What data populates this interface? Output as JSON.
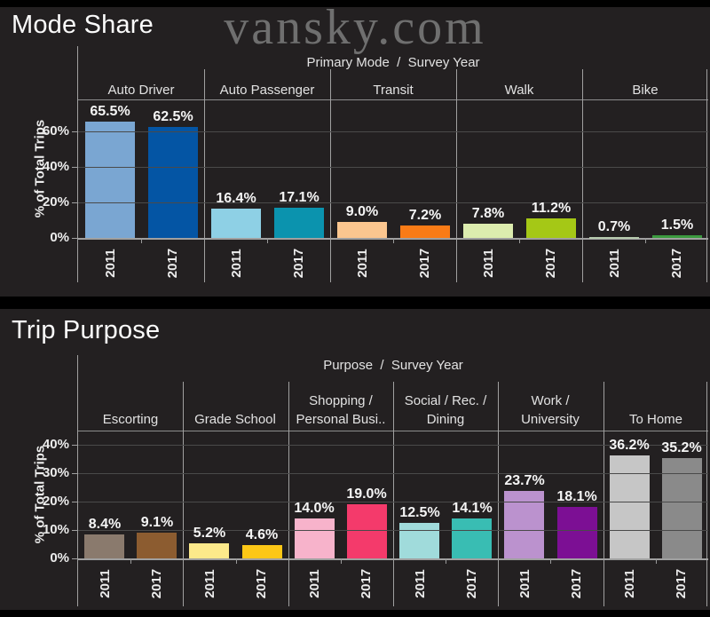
{
  "page": {
    "watermark": "vansky.com",
    "background": "#232021",
    "separator_color": "#000000"
  },
  "chart_data": [
    {
      "type": "bar",
      "title": "Mode Share",
      "group_header": "Primary Mode  /  Survey Year",
      "ylabel": "% of Total Trips",
      "ylim": [
        0,
        78
      ],
      "yticks": [
        0,
        20,
        40,
        60
      ],
      "ytick_labels": [
        "0%",
        "20%",
        "40%",
        "60%"
      ],
      "grid": true,
      "legend": "none",
      "categories": [
        "Auto Driver",
        "Auto Passenger",
        "Transit",
        "Walk",
        "Bike"
      ],
      "series": [
        {
          "name": "2011",
          "values": [
            65.5,
            16.4,
            9.0,
            7.8,
            0.7
          ]
        },
        {
          "name": "2017",
          "values": [
            62.5,
            17.1,
            7.2,
            11.2,
            1.5
          ]
        }
      ],
      "value_labels": [
        [
          "65.5%",
          "62.5%"
        ],
        [
          "16.4%",
          "17.1%"
        ],
        [
          "9.0%",
          "7.2%"
        ],
        [
          "7.8%",
          "11.2%"
        ],
        [
          "0.7%",
          "1.5%"
        ]
      ],
      "bar_colors": [
        [
          "#7aa6d2",
          "#0455a4"
        ],
        [
          "#8ed0e5",
          "#0b93ae"
        ],
        [
          "#fbc68f",
          "#f97b16"
        ],
        [
          "#dcecae",
          "#a5c816"
        ],
        [
          "#b5c9ad",
          "#3b9a3f"
        ]
      ]
    },
    {
      "type": "bar",
      "title": "Trip Purpose",
      "group_header": "Purpose  /  Survey Year",
      "ylabel": "% of Total Trips",
      "ylim": [
        0,
        45
      ],
      "yticks": [
        0,
        10,
        20,
        30,
        40
      ],
      "ytick_labels": [
        "0%",
        "10%",
        "20%",
        "30%",
        "40%"
      ],
      "grid": true,
      "legend": "none",
      "categories": [
        "Escorting",
        "Grade School",
        "Shopping /\nPersonal Busi..",
        "Social / Rec. /\nDining",
        "Work /\nUniversity",
        "To Home"
      ],
      "series": [
        {
          "name": "2011",
          "values": [
            8.4,
            5.2,
            14.0,
            12.5,
            23.7,
            36.2
          ]
        },
        {
          "name": "2017",
          "values": [
            9.1,
            4.6,
            19.0,
            14.1,
            18.1,
            35.2
          ]
        }
      ],
      "value_labels": [
        [
          "8.4%",
          "9.1%"
        ],
        [
          "5.2%",
          "4.6%"
        ],
        [
          "14.0%",
          "19.0%"
        ],
        [
          "12.5%",
          "14.1%"
        ],
        [
          "23.7%",
          "18.1%"
        ],
        [
          "36.2%",
          "35.2%"
        ]
      ],
      "bar_colors": [
        [
          "#8a7a6d",
          "#8c5c30"
        ],
        [
          "#fce98a",
          "#fcc716"
        ],
        [
          "#f7b3cb",
          "#f43a6b"
        ],
        [
          "#a0dbdb",
          "#39bdb3"
        ],
        [
          "#bb92ce",
          "#7c0f94"
        ],
        [
          "#c6c6c6",
          "#8a8a8a"
        ]
      ]
    }
  ]
}
